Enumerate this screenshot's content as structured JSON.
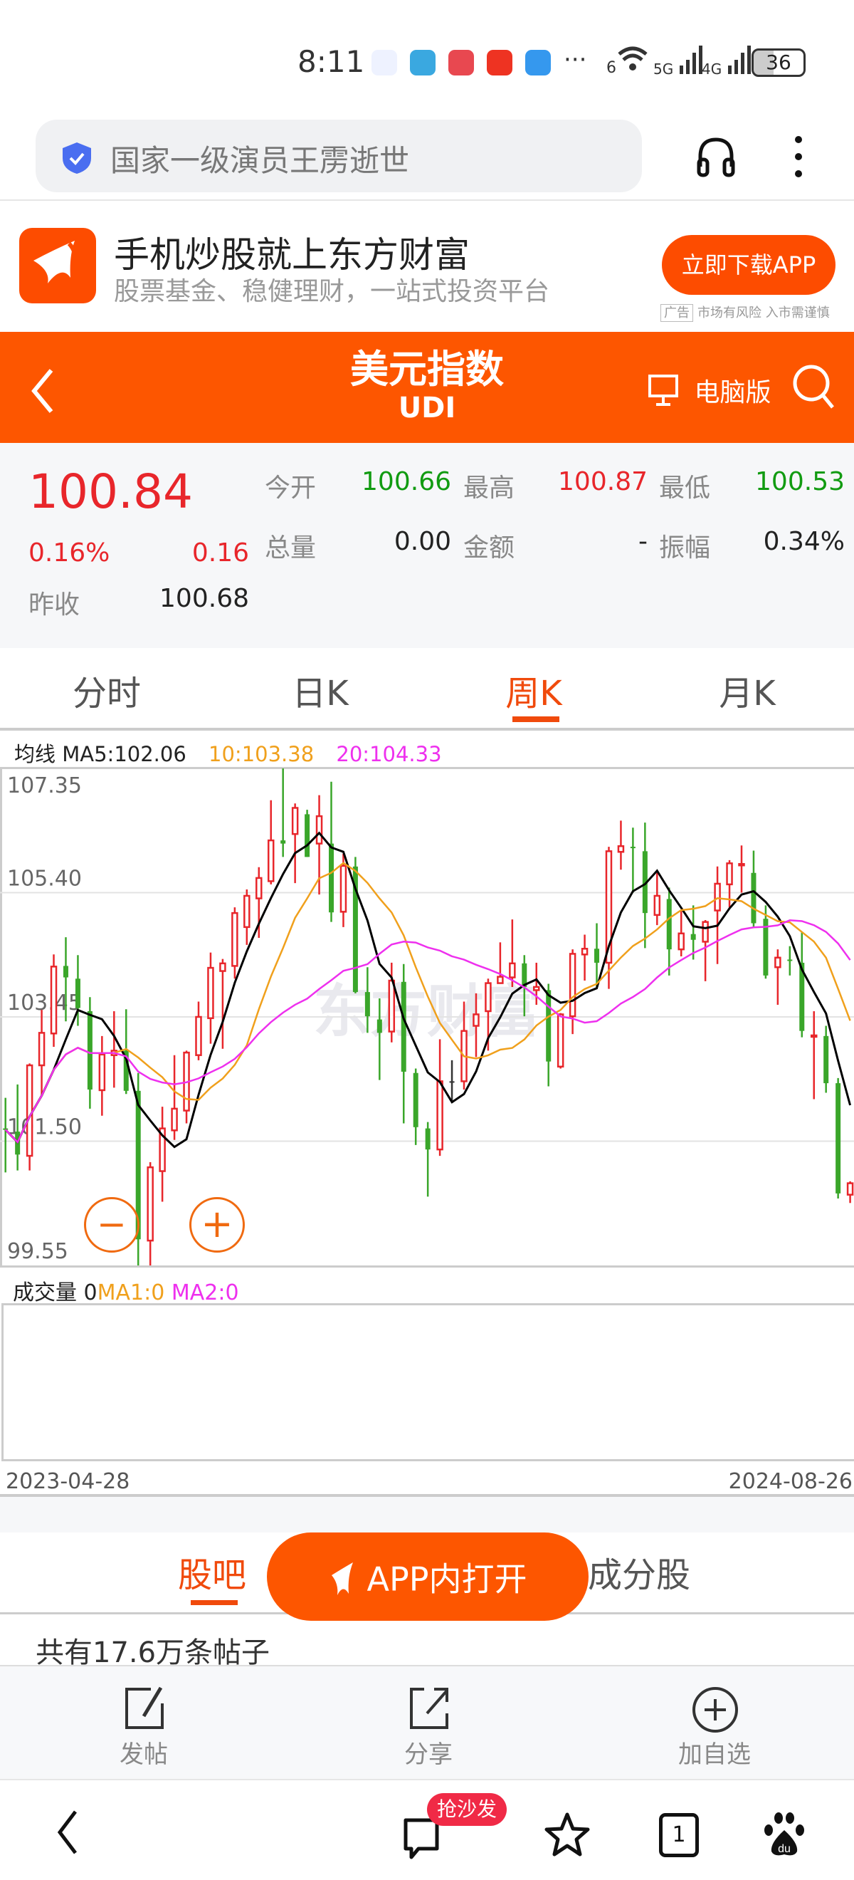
{
  "status_bar": {
    "time": "8:11",
    "network1": "5G",
    "network2": "4G",
    "wifi_label": "6",
    "battery": "36",
    "more": "···"
  },
  "search": {
    "text": "国家一级演员王雳逝世"
  },
  "ad": {
    "title": "手机炒股就上东方财富",
    "subtitle": "股票基金、稳健理财，一站式投资平台",
    "button": "立即下载APP",
    "tag": "广告",
    "disclaimer": "市场有风险 入市需谨慎"
  },
  "header": {
    "title": "美元指数",
    "code": "UDI",
    "desktop_label": "电脑版"
  },
  "quote": {
    "price": "100.84",
    "change_pct": "0.16%",
    "change": "0.16",
    "prev_close_label": "昨收",
    "prev_close": "100.68",
    "open_label": "今开",
    "open": "100.66",
    "high_label": "最高",
    "high": "100.87",
    "low_label": "最低",
    "low": "100.53",
    "volume_label": "总量",
    "volume": "0.00",
    "amount_label": "金额",
    "amount": "-",
    "amplitude_label": "振幅",
    "amplitude": "0.34%"
  },
  "tabs": [
    {
      "label": "分时"
    },
    {
      "label": "日K"
    },
    {
      "label": "周K",
      "active": true
    },
    {
      "label": "月K"
    }
  ],
  "ma_legend": {
    "title": "均线",
    "ma5": "MA5:102.06",
    "ma10": "10:103.38",
    "ma20": "20:104.33"
  },
  "colors": {
    "brand": "#fd5600",
    "up": "#e8262b",
    "down": "#3aa62a",
    "ma5": "#000000",
    "ma10": "#f0a01c",
    "ma20": "#ee30ee"
  },
  "chart_data": {
    "type": "candlestick",
    "period": "weekly",
    "ylim": [
      99.55,
      107.35
    ],
    "y_ticks": [
      "107.35",
      "105.40",
      "103.45",
      "101.50",
      "99.55"
    ],
    "x_start": "2023-04-28",
    "x_end": "2024-08-26",
    "grid": true,
    "watermark": "东方财富",
    "ohlc": [
      [
        101.7,
        102.18,
        101.01,
        101.68
      ],
      [
        101.65,
        102.39,
        101.04,
        101.29
      ],
      [
        101.27,
        102.72,
        101.04,
        102.69
      ],
      [
        102.69,
        103.56,
        102.21,
        103.2
      ],
      [
        103.19,
        104.43,
        102.98,
        104.24
      ],
      [
        104.25,
        104.7,
        103.38,
        104.07
      ],
      [
        104.05,
        104.42,
        103.31,
        103.59
      ],
      [
        103.54,
        103.76,
        102.01,
        102.31
      ],
      [
        102.3,
        103.15,
        101.9,
        102.86
      ],
      [
        102.85,
        103.54,
        102.34,
        102.92
      ],
      [
        102.92,
        103.57,
        102.24,
        102.29
      ],
      [
        102.29,
        102.57,
        99.55,
        99.96
      ],
      [
        99.94,
        101.17,
        99.55,
        101.09
      ],
      [
        101.03,
        102.04,
        100.55,
        101.7
      ],
      [
        101.67,
        102.85,
        101.52,
        102.01
      ],
      [
        101.98,
        102.92,
        101.78,
        102.89
      ],
      [
        102.85,
        103.69,
        102.77,
        103.45
      ],
      [
        103.43,
        104.46,
        103.03,
        104.22
      ],
      [
        104.17,
        104.36,
        102.95,
        104.29
      ],
      [
        104.25,
        105.17,
        104.05,
        105.08
      ],
      [
        104.86,
        105.45,
        104.58,
        105.35
      ],
      [
        105.31,
        105.8,
        104.69,
        105.63
      ],
      [
        105.58,
        106.85,
        105.53,
        106.22
      ],
      [
        106.22,
        107.35,
        105.96,
        106.17
      ],
      [
        106.32,
        106.8,
        105.55,
        106.73
      ],
      [
        106.63,
        106.7,
        105.96,
        105.96
      ],
      [
        106.17,
        106.93,
        105.37,
        106.6
      ],
      [
        106.17,
        107.14,
        104.94,
        105.09
      ],
      [
        105.1,
        106.01,
        104.86,
        105.82
      ],
      [
        105.81,
        105.96,
        103.82,
        103.84
      ],
      [
        103.84,
        104.23,
        103.2,
        103.46
      ],
      [
        103.41,
        103.74,
        102.46,
        103.2
      ],
      [
        103.22,
        104.3,
        103.05,
        104.02
      ],
      [
        104.0,
        104.28,
        101.78,
        102.59
      ],
      [
        102.57,
        102.64,
        101.44,
        101.72
      ],
      [
        101.7,
        101.8,
        100.63,
        101.37
      ],
      [
        101.37,
        103.1,
        101.27,
        102.44
      ],
      [
        102.44,
        102.77,
        102.11,
        102.44
      ],
      [
        102.44,
        103.69,
        102.31,
        103.23
      ],
      [
        103.31,
        103.82,
        102.82,
        103.49
      ],
      [
        103.54,
        104.05,
        102.92,
        103.98
      ],
      [
        103.98,
        104.62,
        103.97,
        104.08
      ],
      [
        104.07,
        104.98,
        103.92,
        104.29
      ],
      [
        104.29,
        104.42,
        103.46,
        103.92
      ],
      [
        103.87,
        104.3,
        103.64,
        103.92
      ],
      [
        103.87,
        103.97,
        102.36,
        102.75
      ],
      [
        102.67,
        103.51,
        102.64,
        103.49
      ],
      [
        103.46,
        104.51,
        103.18,
        104.44
      ],
      [
        104.43,
        104.74,
        104.02,
        104.52
      ],
      [
        104.52,
        104.92,
        103.92,
        104.3
      ],
      [
        104.3,
        106.12,
        103.89,
        106.05
      ],
      [
        106.04,
        106.53,
        105.76,
        106.13
      ],
      [
        106.12,
        106.42,
        105.4,
        106.11
      ],
      [
        106.05,
        106.5,
        104.53,
        105.08
      ],
      [
        105.05,
        105.71,
        104.89,
        105.35
      ],
      [
        105.3,
        105.48,
        104.1,
        104.51
      ],
      [
        104.51,
        105.12,
        104.4,
        104.76
      ],
      [
        104.75,
        105.2,
        104.35,
        104.66
      ],
      [
        104.63,
        104.97,
        104.01,
        104.94
      ],
      [
        105.12,
        105.81,
        104.28,
        105.54
      ],
      [
        105.53,
        105.91,
        105.17,
        105.86
      ],
      [
        105.83,
        106.14,
        105.4,
        105.85
      ],
      [
        105.71,
        106.06,
        104.86,
        104.92
      ],
      [
        104.99,
        105.2,
        104.05,
        104.1
      ],
      [
        104.23,
        104.51,
        103.64,
        104.38
      ],
      [
        104.35,
        104.56,
        104.1,
        104.34
      ],
      [
        104.3,
        104.79,
        103.13,
        103.23
      ],
      [
        103.15,
        103.54,
        102.16,
        103.16
      ],
      [
        103.15,
        103.31,
        102.26,
        102.41
      ],
      [
        102.41,
        102.49,
        100.6,
        100.68
      ],
      [
        100.66,
        100.87,
        100.53,
        100.84
      ]
    ],
    "moving_averages": [
      5,
      10,
      20
    ]
  },
  "volume": {
    "label": "成交量",
    "value": "0",
    "ma1": "MA1:0",
    "ma2": "MA2:0"
  },
  "footer_tabs": [
    {
      "label": "股吧",
      "active": true
    },
    {
      "label": "成分股"
    }
  ],
  "open_app": "APP内打开",
  "post_count": "共有17.6万条帖子",
  "actions": [
    {
      "label": "发帖",
      "icon": "edit-icon"
    },
    {
      "label": "分享",
      "icon": "share-icon"
    },
    {
      "label": "加自选",
      "icon": "add-circle-icon"
    }
  ],
  "nav": {
    "badge": "抢沙发",
    "tabs_count": "1"
  }
}
